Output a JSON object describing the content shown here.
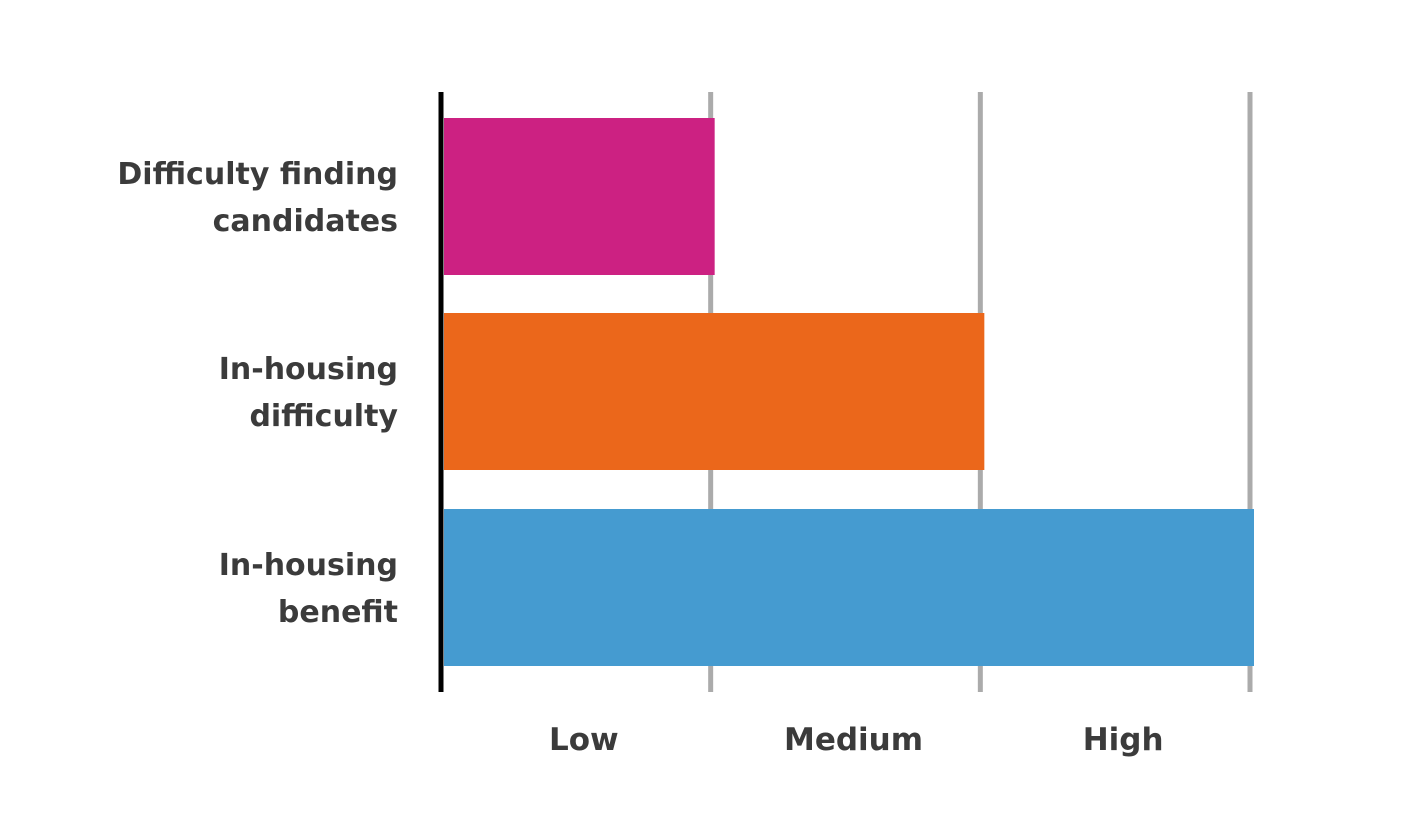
{
  "chart_data": {
    "type": "bar",
    "orientation": "horizontal",
    "categories": [
      "Difficulty finding candidates",
      "In-housing difficulty",
      "In-housing benefit"
    ],
    "category_label_lines": [
      [
        "Difficulty finding",
        "candidates"
      ],
      [
        "In-housing",
        "difficulty"
      ],
      [
        "In-housing",
        "benefit"
      ]
    ],
    "values": [
      1,
      2,
      3
    ],
    "colors": [
      "#cc2182",
      "#eb671b",
      "#459bd0"
    ],
    "xlim": [
      0,
      3
    ],
    "x_tick_labels": [
      "Low",
      "Medium",
      "High"
    ],
    "grid": true,
    "legend": "none",
    "title": "",
    "xlabel": "",
    "ylabel": ""
  }
}
